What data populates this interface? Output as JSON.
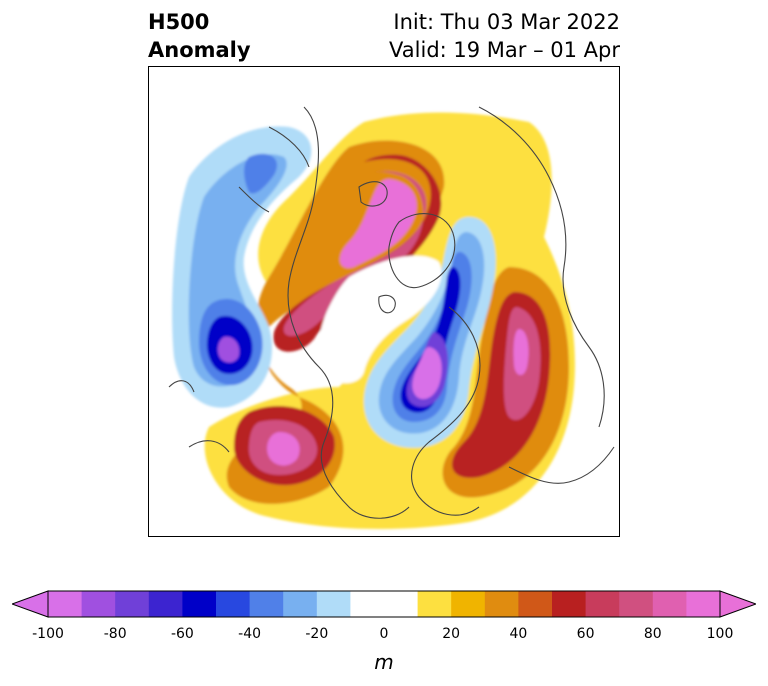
{
  "title": {
    "left_line1": "H500",
    "left_line2": "Anomaly",
    "right_line1": "Init: Thu 03 Mar 2022",
    "right_line2": "Valid: 19 Mar – 01 Apr"
  },
  "map": {
    "projection": "north-polar-stereographic",
    "variable": "500 hPa geopotential height anomaly",
    "anomaly_features": [
      {
        "sign": "positive",
        "region": "Alaska / Yukon / Bering",
        "max_m": 100
      },
      {
        "sign": "positive",
        "region": "Western Europe / North Atlantic",
        "max_m": 100
      },
      {
        "sign": "positive",
        "region": "Eastern Siberia / East Asia",
        "max_m": 100
      },
      {
        "sign": "positive",
        "region": "Eastern Mediterranean / Middle East",
        "max_m": 90
      },
      {
        "sign": "negative",
        "region": "Barents Sea / Scandinavia / Western Russia",
        "min_m": -100
      },
      {
        "sign": "negative",
        "region": "Gulf of Alaska / NE Pacific",
        "min_m": -100
      },
      {
        "sign": "negative",
        "region": "North Pacific (western)",
        "min_m": -50
      }
    ]
  },
  "colorbar": {
    "unit": "m",
    "extend": "both",
    "tick_labels": [
      "-100",
      "-80",
      "-60",
      "-40",
      "-20",
      "0",
      "20",
      "40",
      "60",
      "80",
      "100"
    ],
    "boundaries": [
      -100,
      -90,
      -80,
      -70,
      -60,
      -50,
      -40,
      -30,
      -20,
      -10,
      10,
      20,
      30,
      40,
      50,
      60,
      70,
      80,
      90,
      100
    ],
    "colors": [
      "#d870e8",
      "#a050e0",
      "#7040d8",
      "#3c24d0",
      "#0000c8",
      "#2848e0",
      "#5080e8",
      "#78b0f0",
      "#b0dcf8",
      "#ffffff",
      "#fde040",
      "#f0b400",
      "#e08c10",
      "#d05818",
      "#b82020",
      "#c83c5c",
      "#d05080",
      "#e060b0",
      "#e870d8"
    ],
    "under_color": "#d870e8",
    "over_color": "#e870d8"
  }
}
